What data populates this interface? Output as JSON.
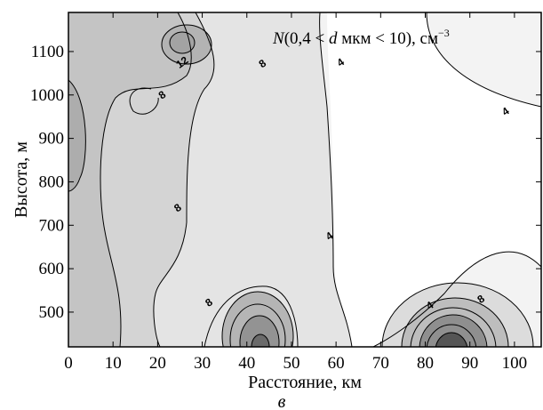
{
  "chart_data": {
    "type": "contour",
    "xlabel": "Расстояние, км",
    "ylabel": "Высота, м",
    "panel_label": "в",
    "annotation": {
      "prefix_italic": "N",
      "open": "(0,4 < ",
      "var_italic": "d",
      "rest": " мкм < 10), см",
      "sup": "−3"
    },
    "xlim": [
      0,
      106
    ],
    "ylim": [
      420,
      1190
    ],
    "x_ticks": [
      0,
      10,
      20,
      30,
      40,
      50,
      60,
      70,
      80,
      90,
      100
    ],
    "y_ticks": [
      500,
      600,
      700,
      800,
      900,
      1000,
      1100
    ],
    "contour_interval": 2,
    "contour_labels": [
      {
        "text": "12",
        "x": 25.5,
        "y": 1075
      },
      {
        "text": "8",
        "x": 43.5,
        "y": 1072
      },
      {
        "text": "8",
        "x": 21,
        "y": 1000
      },
      {
        "text": "4",
        "x": 61,
        "y": 1075
      },
      {
        "text": "4",
        "x": 98,
        "y": 962
      },
      {
        "text": "8",
        "x": 24.5,
        "y": 740
      },
      {
        "text": "4",
        "x": 58.5,
        "y": 675
      },
      {
        "text": "8",
        "x": 31.5,
        "y": 522
      },
      {
        "text": "4",
        "x": 81,
        "y": 515
      },
      {
        "text": "8",
        "x": 92.5,
        "y": 530
      }
    ],
    "colors": {
      "background_zero": "#ffffff",
      "level_4": "#f2f2f2",
      "level_8": "#e2e2e2",
      "level_12": "#d0d0d0",
      "level_16": "#bdbdbd",
      "peak": "#8a8a8a",
      "line": "#000000"
    }
  }
}
